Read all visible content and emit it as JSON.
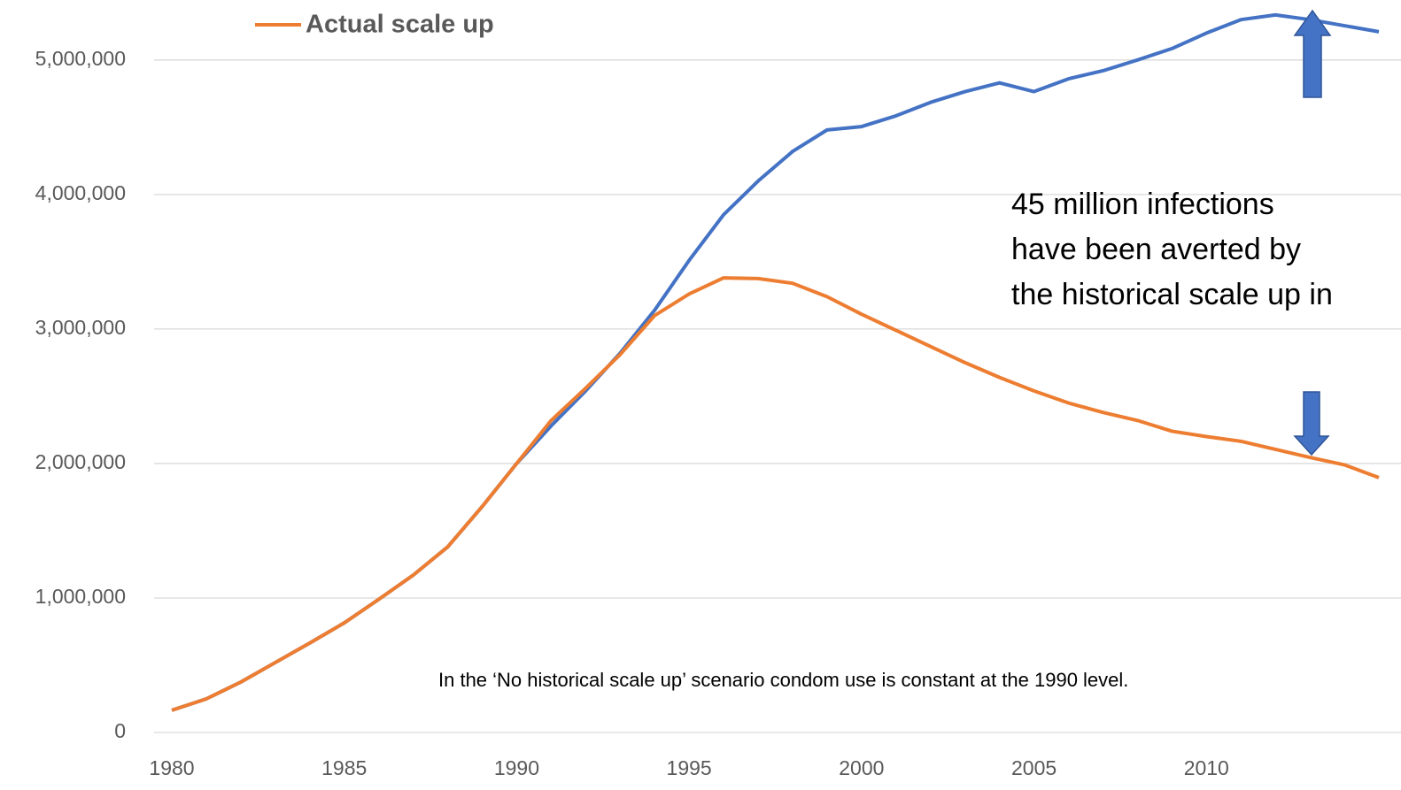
{
  "chart_data": {
    "type": "line",
    "x": [
      1980,
      1981,
      1982,
      1983,
      1984,
      1985,
      1986,
      1987,
      1988,
      1989,
      1990,
      1991,
      1992,
      1993,
      1994,
      1995,
      1996,
      1997,
      1998,
      1999,
      2000,
      2001,
      2002,
      2003,
      2004,
      2005,
      2006,
      2007,
      2008,
      2009,
      2010,
      2011,
      2012,
      2013,
      2014,
      2015
    ],
    "series": [
      {
        "color": "#4472c4",
        "values": [
          165000,
          250000,
          375000,
          520000,
          665000,
          815000,
          990000,
          1170000,
          1380000,
          1680000,
          2000000,
          2280000,
          2540000,
          2820000,
          3140000,
          3510000,
          3850000,
          4100000,
          4320000,
          4480000,
          4505000,
          4585000,
          4685000,
          4765000,
          4830000,
          4765000,
          4860000,
          4920000,
          5000000,
          5085000,
          5200000,
          5300000,
          5335000,
          5300000,
          5255000,
          5210000
        ]
      },
      {
        "name": "Actual scale up",
        "color": "#ed7d31",
        "values": [
          165000,
          250000,
          375000,
          520000,
          665000,
          815000,
          990000,
          1170000,
          1380000,
          1680000,
          2000000,
          2320000,
          2560000,
          2810000,
          3100000,
          3260000,
          3380000,
          3375000,
          3340000,
          3240000,
          3110000,
          2990000,
          2870000,
          2750000,
          2640000,
          2540000,
          2450000,
          2380000,
          2320000,
          2240000,
          2200000,
          2165000,
          2105000,
          2045000,
          1990000,
          1895000
        ]
      }
    ],
    "xlim": [
      1980,
      2015
    ],
    "xticks": [
      1980,
      1985,
      1990,
      1995,
      2000,
      2005,
      2010
    ],
    "ylim": [
      0,
      5400000
    ],
    "yticks": [
      0,
      {
        "value": 1000000,
        "label": "1,000,000"
      },
      {
        "value": 2000000,
        "label": "2,000,000"
      },
      {
        "value": 3000000,
        "label": "3,000,000"
      },
      {
        "value": 4000000,
        "label": "4,000,000"
      },
      {
        "value": 5000000,
        "label": "5,000,000"
      }
    ],
    "grid": true,
    "annotations": [
      "45 million infections",
      "have been averted by",
      "the historical scale up in"
    ],
    "note": "In the ‘No historical scale up’ scenario condom  use is constant at the 1990 level."
  }
}
